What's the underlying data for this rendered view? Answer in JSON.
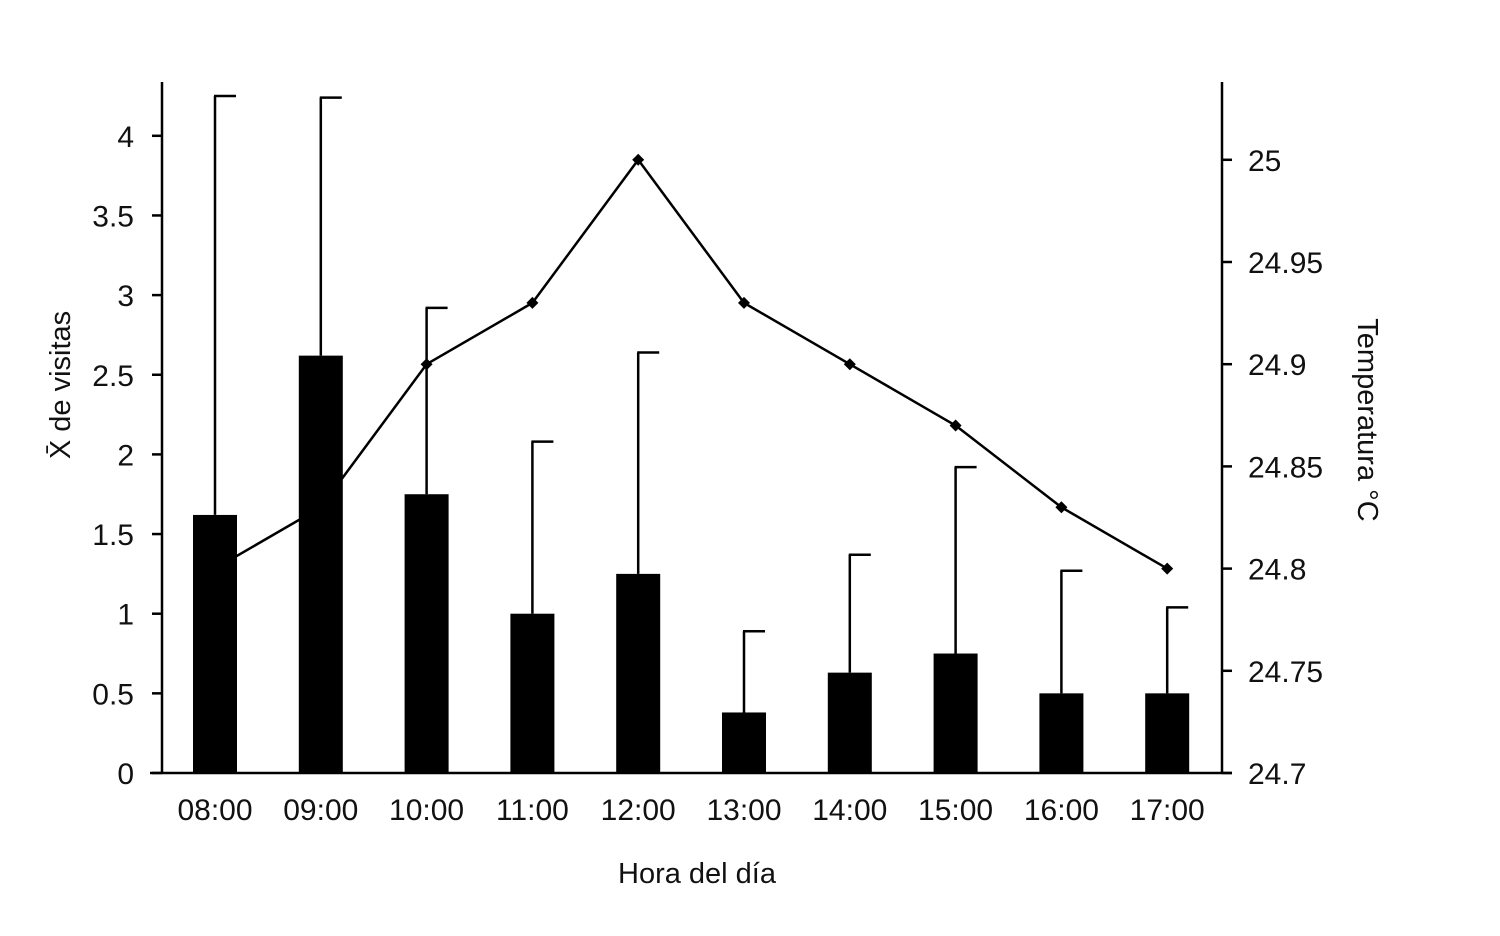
{
  "chart_data": {
    "type": "bar",
    "categories": [
      "08:00",
      "09:00",
      "10:00",
      "11:00",
      "12:00",
      "13:00",
      "14:00",
      "15:00",
      "16:00",
      "17:00"
    ],
    "series": [
      {
        "type": "bar",
        "axis": "left",
        "values": [
          1.62,
          2.62,
          1.75,
          1.0,
          1.25,
          0.38,
          0.63,
          0.75,
          0.5,
          0.5
        ],
        "error_upper": [
          4.25,
          4.24,
          2.92,
          2.08,
          2.64,
          0.89,
          1.37,
          1.92,
          1.27,
          1.04
        ]
      },
      {
        "type": "line",
        "axis": "right",
        "values": [
          24.8,
          24.83,
          24.9,
          24.93,
          25.0,
          24.93,
          24.9,
          24.87,
          24.83,
          24.8
        ]
      }
    ],
    "xlabel": "Hora del día",
    "ylabel": "X̄ de visitas",
    "y2label": "Temperatura  °C",
    "ylim": [
      0,
      4.3
    ],
    "y2lim": [
      24.7,
      25.03
    ],
    "yticks": [
      "0",
      "0.5",
      "1",
      "1.5",
      "2",
      "2.5",
      "3",
      "3.5",
      "4"
    ],
    "y2ticks": [
      "24.7",
      "24.75",
      "24.8",
      "24.85",
      "24.9",
      "24.95",
      "25"
    ],
    "grid": false,
    "legend": "none",
    "colors": {
      "bars": "#000000",
      "line": "#000000",
      "axes": "#000000"
    }
  }
}
